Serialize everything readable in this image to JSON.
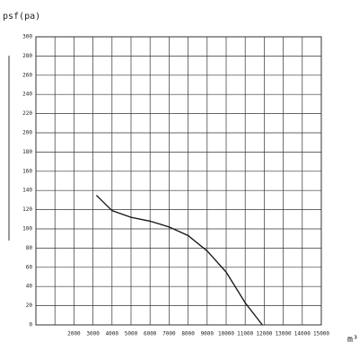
{
  "chart_data": {
    "type": "line",
    "y_label": "psf(pa)",
    "x_label": "m³",
    "x": [
      3180,
      4000,
      5000,
      6000,
      7000,
      8000,
      9000,
      10000,
      11000,
      11900
    ],
    "series": [
      {
        "values": [
          135,
          119,
          112,
          108,
          102,
          93,
          77,
          55,
          23,
          0
        ],
        "color": "#111111"
      }
    ],
    "xlim": [
      0,
      15000
    ],
    "ylim": [
      0,
      300
    ],
    "xticks": [
      {
        "value": 1000,
        "label": null
      },
      2000,
      3000,
      4000,
      5000,
      6000,
      7000,
      8000,
      9000,
      10000,
      11000,
      12000,
      13000,
      14000,
      15000
    ],
    "yticks": [
      0,
      20,
      40,
      60,
      80,
      100,
      120,
      140,
      160,
      180,
      200,
      220,
      240,
      260,
      280,
      300
    ],
    "grid": true
  }
}
